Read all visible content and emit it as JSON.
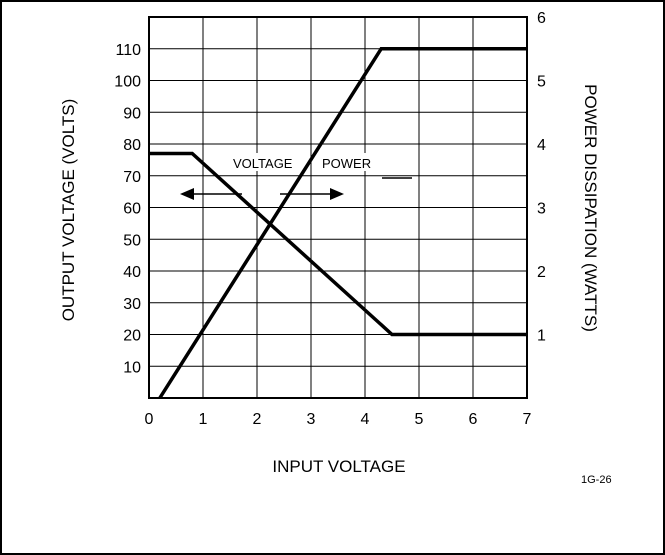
{
  "chart_data": {
    "type": "line",
    "xlabel": "INPUT VOLTAGE",
    "ylabel_left": "OUTPUT VOLTAGE (VOLTS)",
    "ylabel_right": "POWER DISSIPATION (WATTS)",
    "xlim": [
      0,
      7
    ],
    "ylim_left": [
      0,
      120
    ],
    "ylim_right": [
      0,
      6
    ],
    "x_ticks": [
      "0",
      "1",
      "2",
      "3",
      "4",
      "5",
      "6",
      "7"
    ],
    "y_left_ticks": [
      "10",
      "20",
      "30",
      "40",
      "50",
      "60",
      "70",
      "80",
      "90",
      "100",
      "110"
    ],
    "y_right_ticks": [
      "1",
      "2",
      "3",
      "4",
      "5",
      "6"
    ],
    "grid": true,
    "series": [
      {
        "name": "VOLTAGE",
        "axis": "left",
        "points": [
          [
            0.2,
            0
          ],
          [
            4.3,
            110
          ],
          [
            7,
            110
          ]
        ]
      },
      {
        "name": "POWER",
        "axis": "right",
        "points": [
          [
            0,
            3.85
          ],
          [
            0.8,
            3.85
          ],
          [
            4.5,
            1
          ],
          [
            7,
            1
          ]
        ]
      }
    ],
    "annotations": {
      "voltage_label": "VOLTAGE",
      "power_label": "POWER",
      "figure_id": "1G-26"
    },
    "colors": {
      "line": "#000000",
      "grid": "#000000",
      "background": "#ffffff"
    }
  }
}
